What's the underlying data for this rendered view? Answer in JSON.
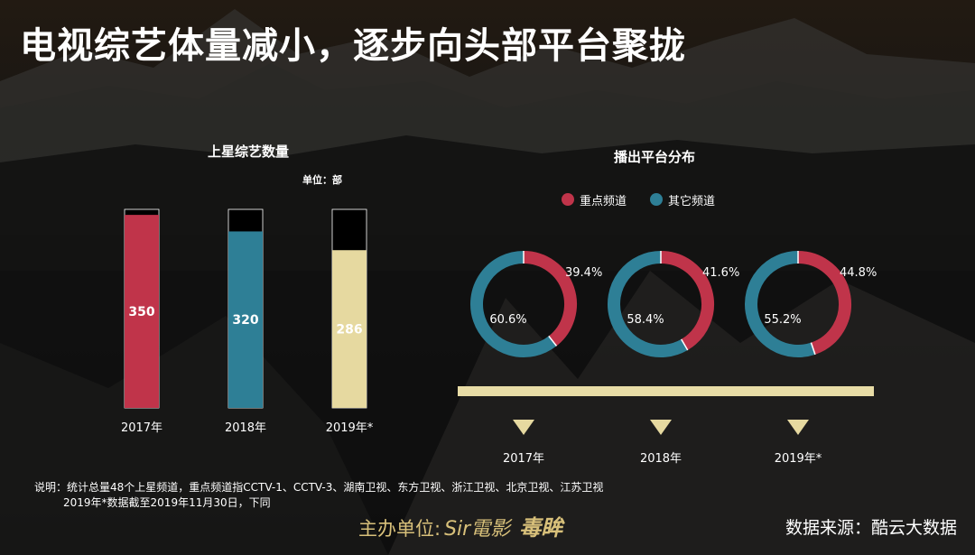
{
  "page": {
    "title": "电视综艺体量减小，逐步向头部平台聚拢",
    "note_line1": "说明：统计总量48个上星频道，重点频道指CCTV-1、CCTV-3、湖南卫视、东方卫视、浙江卫视、北京卫视、江苏卫视",
    "note_line2": "2019年*数据截至2019年11月30日，下同",
    "sponsor_label": "主办单位:",
    "sponsor_brand1": "Sir電影",
    "sponsor_brand2": "毒眸",
    "source": "数据来源：酷云大数据"
  },
  "colors": {
    "red": "#c0344a",
    "teal": "#2e7f96",
    "gold": "#e6d9a0",
    "gold_bar": "#e8dca6"
  },
  "chart_data": [
    {
      "type": "bar",
      "title": "上星综艺数量",
      "unit": "单位：部",
      "categories": [
        "2017年",
        "2018年",
        "2019年*"
      ],
      "values": [
        350,
        320,
        286
      ],
      "bar_colors": [
        "#c0344a",
        "#2e7f96",
        "#e6d9a0"
      ]
    },
    {
      "type": "pie",
      "title": "播出平台分布",
      "legend": [
        "重点频道",
        "其它频道"
      ],
      "categories": [
        "2017年",
        "2018年",
        "2019年*"
      ],
      "series": [
        {
          "name": "重点频道",
          "values": [
            39.4,
            41.6,
            44.8
          ],
          "labels": [
            "39.4%",
            "41.6%",
            "44.8%"
          ]
        },
        {
          "name": "其它频道",
          "values": [
            60.6,
            58.4,
            55.2
          ],
          "labels": [
            "60.6%",
            "58.4%",
            "55.2%"
          ]
        }
      ]
    }
  ]
}
